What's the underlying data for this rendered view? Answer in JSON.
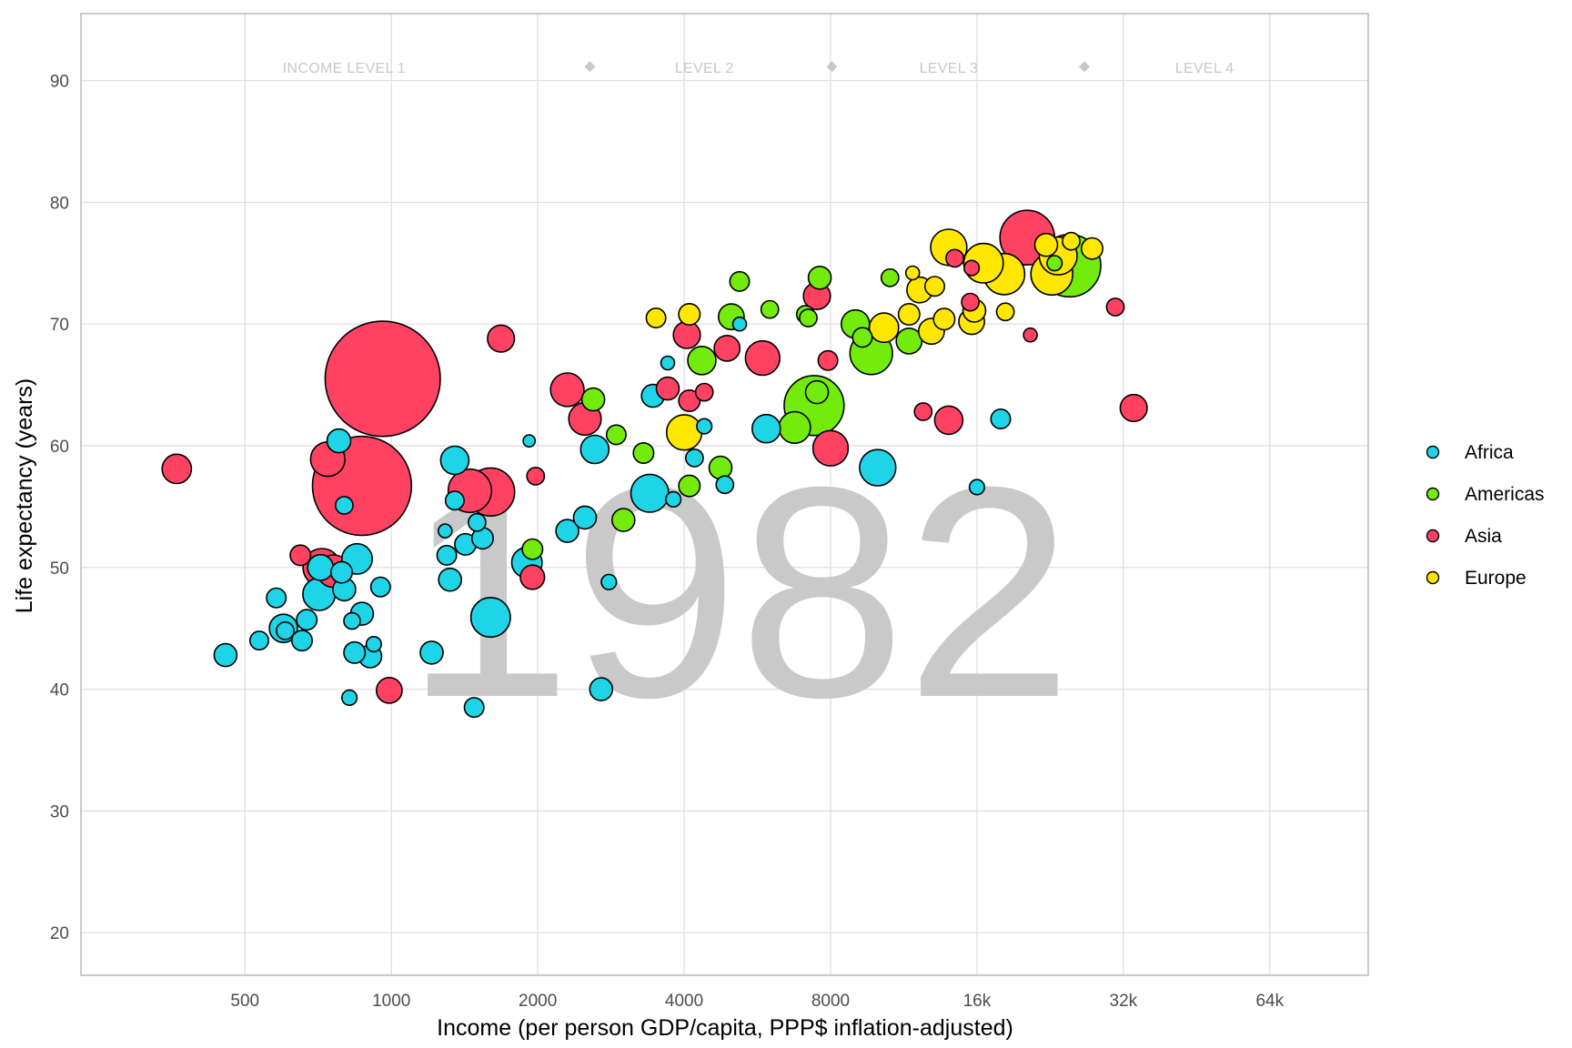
{
  "chart_data": {
    "type": "scatter",
    "title": "",
    "year_label": "1982",
    "xlabel": "Income (per person GDP/capita, PPP$ inflation-adjusted)",
    "ylabel": "Life expectancy (years)",
    "x_scale": "log2",
    "xlim": [
      230,
      102000
    ],
    "ylim": [
      16.5,
      95.5
    ],
    "x_ticks": [
      {
        "value": 500,
        "label": "500"
      },
      {
        "value": 1000,
        "label": "1000"
      },
      {
        "value": 2000,
        "label": "2000"
      },
      {
        "value": 4000,
        "label": "4000"
      },
      {
        "value": 8000,
        "label": "8000"
      },
      {
        "value": 16000,
        "label": "16k"
      },
      {
        "value": 32000,
        "label": "32k"
      },
      {
        "value": 64000,
        "label": "64k"
      }
    ],
    "y_ticks": [
      {
        "value": 20,
        "label": "20"
      },
      {
        "value": 30,
        "label": "30"
      },
      {
        "value": 40,
        "label": "40"
      },
      {
        "value": 50,
        "label": "50"
      },
      {
        "value": 60,
        "label": "60"
      },
      {
        "value": 70,
        "label": "70"
      },
      {
        "value": 80,
        "label": "80"
      },
      {
        "value": 90,
        "label": "90"
      }
    ],
    "grid": true,
    "legend_position": "right",
    "income_levels": {
      "y": 91.3,
      "labels": [
        {
          "text": "INCOME LEVEL 1",
          "x": 800
        },
        {
          "text": "LEVEL 2",
          "x": 4400
        },
        {
          "text": "LEVEL 3",
          "x": 14000
        },
        {
          "text": "LEVEL 4",
          "x": 47000
        }
      ],
      "markers": [
        2560,
        8050,
        26600
      ]
    },
    "series": [
      {
        "name": "Africa",
        "color": "#1ed4e6",
        "points": [
          [
            456,
            42.8,
            6
          ],
          [
            535,
            44,
            3.5
          ],
          [
            580,
            47.5,
            4
          ],
          [
            600,
            45,
            10
          ],
          [
            605,
            44.8,
            3
          ],
          [
            655,
            44,
            4.5
          ],
          [
            670,
            45.7,
            4.5
          ],
          [
            715,
            50,
            8
          ],
          [
            710,
            47.8,
            14
          ],
          [
            790,
            49.6,
            5
          ],
          [
            800,
            48.2,
            6
          ],
          [
            820,
            39.3,
            2
          ],
          [
            840,
            43,
            5
          ],
          [
            850,
            50.7,
            12
          ],
          [
            870,
            46.2,
            6
          ],
          [
            905,
            42.7,
            6
          ],
          [
            920,
            43.7,
            2
          ],
          [
            950,
            48.4,
            4
          ],
          [
            780,
            60.4,
            6.5
          ],
          [
            800,
            55.1,
            3
          ],
          [
            830,
            45.6,
            2.5
          ],
          [
            1210,
            43,
            6
          ],
          [
            1290,
            53,
            1.5
          ],
          [
            1320,
            49,
            6
          ],
          [
            1300,
            51,
            4
          ],
          [
            1350,
            58.8,
            10
          ],
          [
            1350,
            55.5,
            3.5
          ],
          [
            1420,
            51.9,
            5
          ],
          [
            1480,
            38.5,
            4
          ],
          [
            1500,
            53.7,
            3
          ],
          [
            1540,
            52.4,
            5
          ],
          [
            1600,
            45.9,
            22
          ],
          [
            1900,
            50.4,
            12
          ],
          [
            1920,
            60.4,
            1
          ],
          [
            2300,
            53,
            6
          ],
          [
            2500,
            54.1,
            6
          ],
          [
            2620,
            59.7,
            10
          ],
          [
            2700,
            40,
            6
          ],
          [
            2800,
            48.8,
            2
          ],
          [
            3400,
            56.1,
            20
          ],
          [
            3450,
            64.1,
            6
          ],
          [
            3700,
            66.8,
            1.5
          ],
          [
            3800,
            55.6,
            2
          ],
          [
            4200,
            59,
            3
          ],
          [
            4400,
            61.6,
            2
          ],
          [
            4850,
            56.8,
            3
          ],
          [
            5200,
            70,
            1.5
          ],
          [
            5900,
            61.4,
            10
          ],
          [
            10000,
            58.2,
            18
          ],
          [
            17900,
            62.2,
            4
          ],
          [
            16000,
            56.6,
            2
          ]
        ]
      },
      {
        "name": "Americas",
        "color": "#73eb0c",
        "points": [
          [
            1950,
            51.5,
            4.5
          ],
          [
            2600,
            63.8,
            6
          ],
          [
            2900,
            60.9,
            4
          ],
          [
            3000,
            53.9,
            6
          ],
          [
            3300,
            59.4,
            4.5
          ],
          [
            4100,
            56.7,
            5
          ],
          [
            4350,
            67,
            10
          ],
          [
            4750,
            58.2,
            6
          ],
          [
            5000,
            70.6,
            8
          ],
          [
            5200,
            73.5,
            4
          ],
          [
            6000,
            71.2,
            3
          ],
          [
            6750,
            61.5,
            13
          ],
          [
            7100,
            70.8,
            3
          ],
          [
            7200,
            70.5,
            3
          ],
          [
            7400,
            63.3,
            55
          ],
          [
            7500,
            64.4,
            6
          ],
          [
            7600,
            73.8,
            6
          ],
          [
            9000,
            70,
            10
          ],
          [
            9300,
            68.9,
            4
          ],
          [
            9700,
            67.6,
            26
          ],
          [
            10600,
            73.8,
            3
          ],
          [
            11600,
            68.6,
            8
          ],
          [
            23100,
            75,
            2
          ],
          [
            24800,
            74.8,
            60
          ]
        ]
      },
      {
        "name": "Asia",
        "color": "#ff4262",
        "points": [
          [
            362,
            58.1,
            11
          ],
          [
            650,
            51,
            4.5
          ],
          [
            720,
            50,
            20
          ],
          [
            760,
            49.7,
            14
          ],
          [
            740,
            58.9,
            16
          ],
          [
            960,
            65.5,
            220
          ],
          [
            870,
            56.7,
            160
          ],
          [
            990,
            39.9,
            8
          ],
          [
            1450,
            56.3,
            27
          ],
          [
            1600,
            56.2,
            34
          ],
          [
            1680,
            68.8,
            9
          ],
          [
            1950,
            49.2,
            7
          ],
          [
            1980,
            57.5,
            3
          ],
          [
            2300,
            64.6,
            15
          ],
          [
            2500,
            62.2,
            14
          ],
          [
            3700,
            64.7,
            6
          ],
          [
            4100,
            63.7,
            5
          ],
          [
            4050,
            69.1,
            9
          ],
          [
            4400,
            64.4,
            3
          ],
          [
            4900,
            68,
            8
          ],
          [
            5800,
            67.2,
            16
          ],
          [
            7500,
            72.3,
            9
          ],
          [
            7900,
            67,
            4
          ],
          [
            8000,
            59.8,
            17
          ],
          [
            12400,
            62.8,
            3
          ],
          [
            14000,
            62.1,
            10
          ],
          [
            14400,
            75.4,
            3
          ],
          [
            15500,
            71.8,
            3
          ],
          [
            15600,
            74.6,
            2
          ],
          [
            20300,
            77.1,
            45
          ],
          [
            20600,
            69.1,
            1.5
          ],
          [
            30800,
            71.4,
            3
          ],
          [
            33600,
            63.1,
            9
          ]
        ]
      },
      {
        "name": "Europe",
        "color": "#ffe700",
        "points": [
          [
            3500,
            70.5,
            4
          ],
          [
            4100,
            70.8,
            5
          ],
          [
            4000,
            61.1,
            17
          ],
          [
            10300,
            69.7,
            11
          ],
          [
            11600,
            70.8,
            5
          ],
          [
            11800,
            74.2,
            1.5
          ],
          [
            12200,
            72.8,
            8
          ],
          [
            12900,
            69.4,
            8
          ],
          [
            13100,
            73.1,
            4
          ],
          [
            13700,
            70.4,
            5
          ],
          [
            14000,
            76.3,
            18
          ],
          [
            15600,
            70.2,
            8
          ],
          [
            15800,
            71.1,
            6
          ],
          [
            16500,
            75,
            22
          ],
          [
            18200,
            74.1,
            24
          ],
          [
            18300,
            71,
            3
          ],
          [
            22200,
            76.5,
            6
          ],
          [
            22800,
            74.1,
            25
          ],
          [
            23500,
            75.6,
            20
          ],
          [
            25000,
            76.8,
            3
          ],
          [
            27600,
            76.2,
            5
          ]
        ]
      }
    ]
  }
}
